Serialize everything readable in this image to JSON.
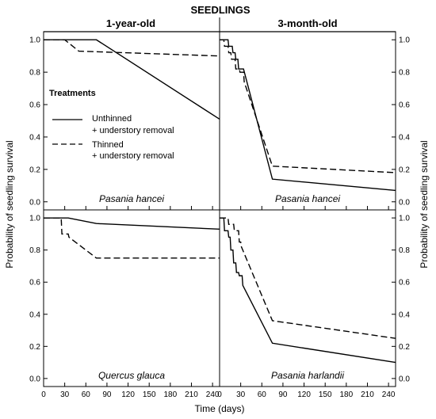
{
  "title": "SEEDLINGS",
  "column_headers": [
    "1-year-old",
    "3-month-old"
  ],
  "ylabel": "Probability of seedling survival",
  "xlabel": "Time (days)",
  "legend": {
    "title": "Treatments",
    "items": [
      {
        "line1": "Unthinned",
        "line2": "+ understory removal",
        "style": "solid"
      },
      {
        "line1": "Thinned",
        "line2": "+ understory removal",
        "style": "dashed"
      }
    ]
  },
  "chart_data": [
    {
      "type": "line",
      "panel": "top-left",
      "species": "Pasania hancei",
      "xlim": [
        0,
        250
      ],
      "ylim": [
        -0.05,
        1.05
      ],
      "xticks": [
        0,
        30,
        60,
        90,
        120,
        150,
        180,
        210,
        240
      ],
      "yticks": [
        0.0,
        0.2,
        0.4,
        0.6,
        0.8,
        1.0
      ],
      "series": [
        {
          "name": "Unthinned + understory removal",
          "style": "solid",
          "x": [
            0,
            75,
            250
          ],
          "y": [
            1.0,
            1.0,
            0.51
          ]
        },
        {
          "name": "Thinned + understory removal",
          "style": "dashed",
          "x": [
            0,
            30,
            50,
            250
          ],
          "y": [
            1.0,
            1.0,
            0.93,
            0.9
          ]
        }
      ]
    },
    {
      "type": "line",
      "panel": "top-right",
      "species": "Pasania hancei",
      "xlim": [
        0,
        250
      ],
      "ylim": [
        -0.05,
        1.05
      ],
      "xticks": [
        0,
        30,
        60,
        90,
        120,
        150,
        180,
        210,
        240
      ],
      "yticks": [
        0.0,
        0.2,
        0.4,
        0.6,
        0.8,
        1.0
      ],
      "series": [
        {
          "name": "Unthinned + understory removal",
          "style": "solid",
          "x": [
            0,
            12,
            13,
            18,
            19,
            22,
            23,
            26,
            27,
            33,
            34,
            75,
            250
          ],
          "y": [
            1.0,
            1.0,
            0.96,
            0.96,
            0.92,
            0.92,
            0.88,
            0.88,
            0.82,
            0.82,
            0.82,
            0.14,
            0.07
          ]
        },
        {
          "name": "Thinned + understory removal",
          "style": "dashed",
          "x": [
            0,
            6,
            7,
            12,
            13,
            16,
            17,
            22,
            23,
            28,
            29,
            34,
            35,
            75,
            250
          ],
          "y": [
            1.0,
            1.0,
            0.96,
            0.96,
            0.92,
            0.92,
            0.88,
            0.88,
            0.82,
            0.82,
            0.8,
            0.8,
            0.74,
            0.22,
            0.18
          ]
        }
      ]
    },
    {
      "type": "line",
      "panel": "bottom-left",
      "species": "Quercus glauca",
      "xlim": [
        0,
        250
      ],
      "ylim": [
        -0.05,
        1.05
      ],
      "xticks": [
        0,
        30,
        60,
        90,
        120,
        150,
        180,
        210,
        240
      ],
      "yticks": [
        0.0,
        0.2,
        0.4,
        0.6,
        0.8,
        1.0
      ],
      "series": [
        {
          "name": "Unthinned + understory removal",
          "style": "solid",
          "x": [
            0,
            35,
            75,
            250
          ],
          "y": [
            1.0,
            1.0,
            0.965,
            0.93
          ]
        },
        {
          "name": "Thinned + understory removal",
          "style": "dashed",
          "x": [
            0,
            25,
            26,
            35,
            36,
            75,
            250
          ],
          "y": [
            1.0,
            1.0,
            0.9,
            0.9,
            0.88,
            0.75,
            0.75
          ]
        }
      ]
    },
    {
      "type": "line",
      "panel": "bottom-right",
      "species": "Pasania harlandii",
      "xlim": [
        0,
        250
      ],
      "ylim": [
        -0.05,
        1.05
      ],
      "xticks": [
        0,
        30,
        60,
        90,
        120,
        150,
        180,
        210,
        240
      ],
      "yticks": [
        0.0,
        0.2,
        0.4,
        0.6,
        0.8,
        1.0
      ],
      "series": [
        {
          "name": "Unthinned + understory removal",
          "style": "solid",
          "x": [
            0,
            6,
            7,
            12,
            13,
            15,
            16,
            19,
            20,
            23,
            24,
            27,
            28,
            32,
            33,
            75,
            250
          ],
          "y": [
            1.0,
            1.0,
            0.92,
            0.92,
            0.88,
            0.88,
            0.8,
            0.8,
            0.72,
            0.72,
            0.66,
            0.66,
            0.64,
            0.64,
            0.58,
            0.22,
            0.1
          ]
        },
        {
          "name": "Thinned + understory removal",
          "style": "dashed",
          "x": [
            0,
            12,
            13,
            20,
            21,
            27,
            28,
            30,
            31,
            75,
            250
          ],
          "y": [
            1.0,
            1.0,
            0.96,
            0.96,
            0.92,
            0.92,
            0.85,
            0.85,
            0.82,
            0.36,
            0.25
          ]
        }
      ]
    }
  ]
}
